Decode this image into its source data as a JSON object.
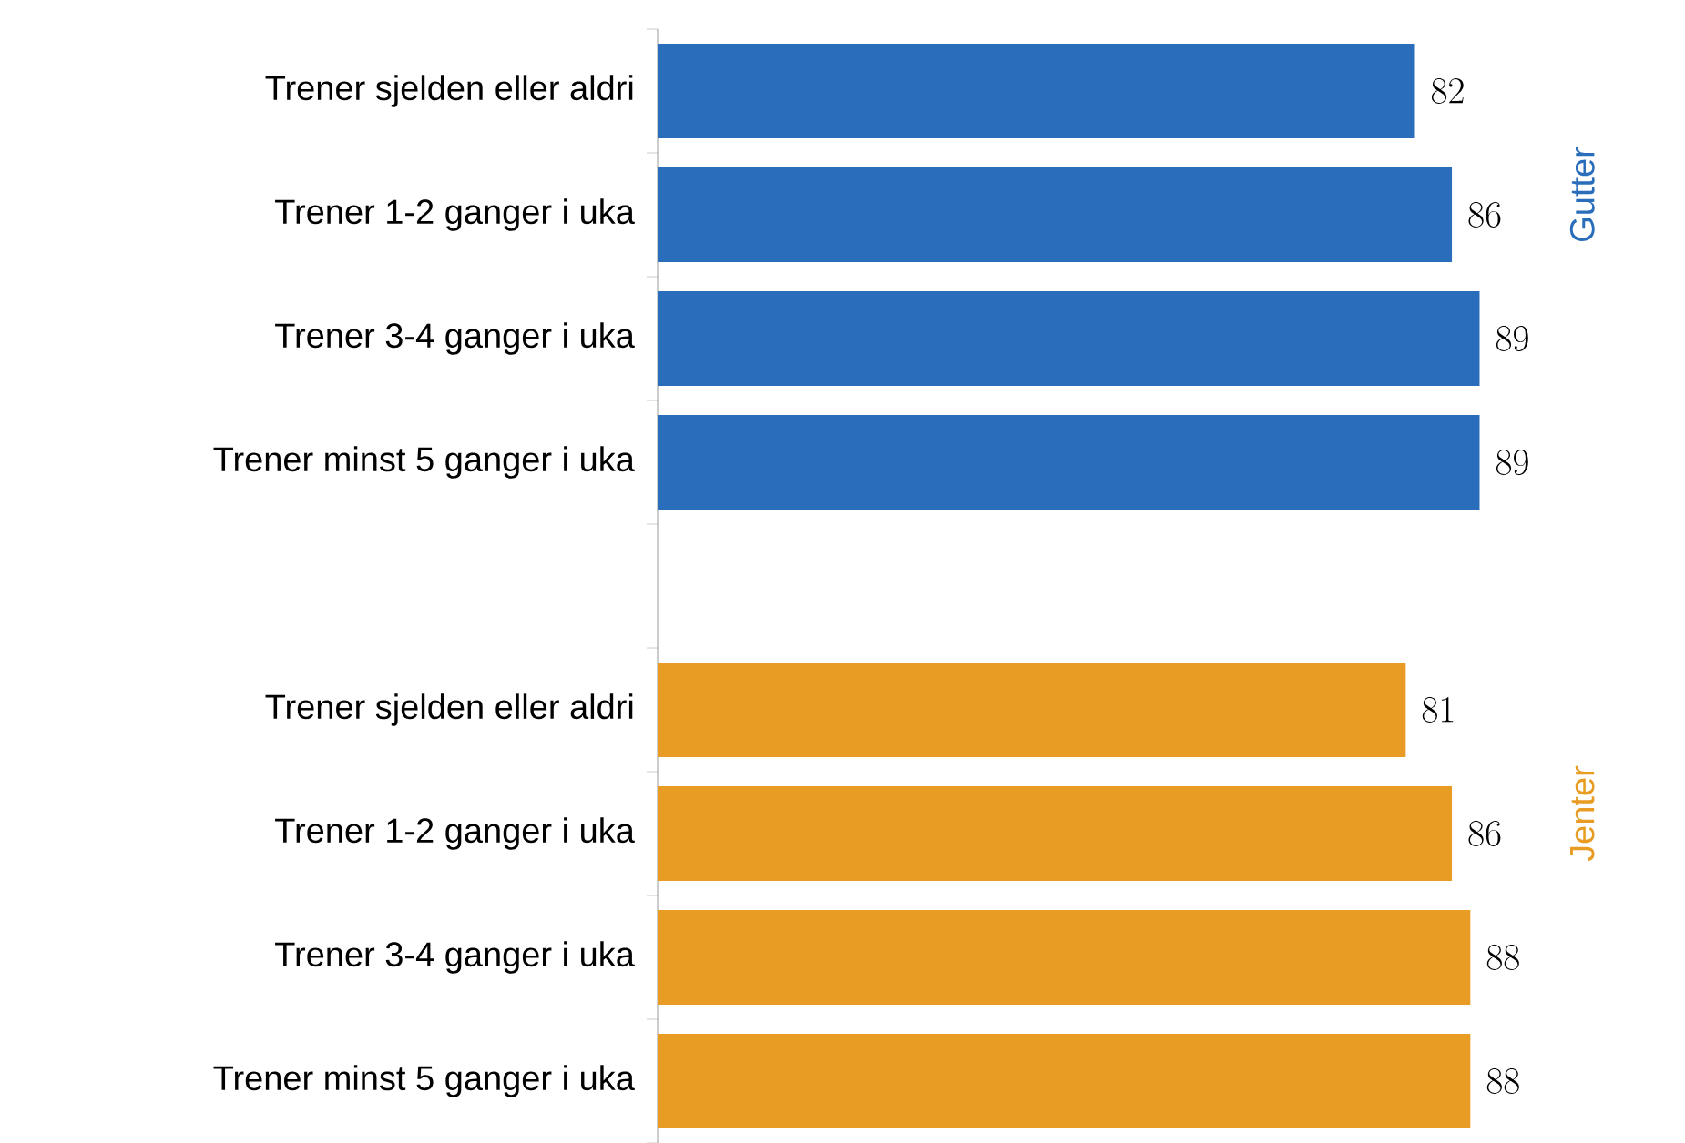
{
  "chart_data": {
    "type": "bar",
    "orientation": "horizontal",
    "data_labels": true,
    "categories": [
      "Trener sjelden eller aldri",
      "Trener 1-2 ganger i uka",
      "Trener 3-4 ganger i uka",
      "Trener minst 5 ganger i uka",
      null,
      "Trener sjelden eller aldri",
      "Trener 1-2 ganger i uka",
      "Trener 3-4 ganger i uka",
      "Trener minst 5 ganger i uka"
    ],
    "series": [
      {
        "name": "Gutter",
        "color": "#2a6ebb",
        "values": [
          82,
          86,
          89,
          89,
          null,
          null,
          null,
          null,
          null
        ]
      },
      {
        "name": "Jenter",
        "color": "#e89c24",
        "values": [
          null,
          null,
          null,
          null,
          null,
          81,
          86,
          88,
          88
        ]
      }
    ]
  }
}
